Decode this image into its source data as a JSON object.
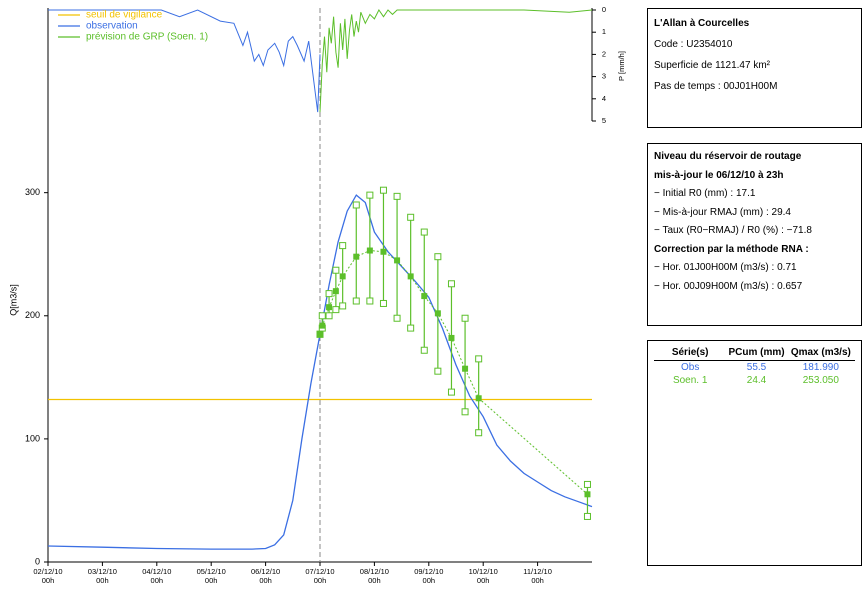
{
  "chart_data": [
    {
      "type": "line",
      "xlim": [
        0,
        240
      ],
      "xticks": [
        {
          "value": 0,
          "label": "02/12/10 00h"
        },
        {
          "value": 24,
          "label": "03/12/10 00h"
        },
        {
          "value": 48,
          "label": "04/12/10 00h"
        },
        {
          "value": 72,
          "label": "05/12/10 00h"
        },
        {
          "value": 96,
          "label": "06/12/10 00h"
        },
        {
          "value": 120,
          "label": "07/12/10 00h"
        },
        {
          "value": 144,
          "label": "08/12/10 00h"
        },
        {
          "value": 168,
          "label": "09/12/10 00h"
        },
        {
          "value": 192,
          "label": "10/12/10 00h"
        },
        {
          "value": 216,
          "label": "11/12/10 00h"
        }
      ],
      "ylim": [
        0,
        450
      ],
      "yticks": [
        0,
        100,
        200,
        300
      ],
      "ylabel": "Q[m3/s]",
      "threshold": {
        "name": "seuil de vigilance",
        "value": 132,
        "color": "#f2c200"
      },
      "forecast_time": 120,
      "series": [
        {
          "name": "observation",
          "color": "#3b6fe3",
          "x": [
            0,
            24,
            48,
            72,
            90,
            96,
            100,
            104,
            108,
            112,
            116,
            120,
            124,
            128,
            132,
            136,
            140,
            144,
            150,
            156,
            162,
            168,
            174,
            180,
            186,
            192,
            198,
            204,
            210,
            216,
            222,
            228,
            234,
            240
          ],
          "values": [
            13,
            12,
            11,
            10.5,
            10.5,
            11,
            14,
            22,
            50,
            100,
            145,
            185,
            225,
            260,
            285,
            298,
            292,
            268,
            252,
            240,
            228,
            215,
            190,
            160,
            135,
            118,
            95,
            82,
            72,
            65,
            58,
            53,
            49,
            45
          ]
        },
        {
          "name": "prévision de GRP (Soen. 1)",
          "color": "#5cbf2a",
          "x": [
            120,
            121,
            124,
            127,
            130,
            136,
            142,
            148,
            154,
            160,
            166,
            172,
            178,
            184,
            190,
            238
          ],
          "values": [
            185,
            192,
            207,
            220,
            232,
            248,
            253,
            252,
            245,
            232,
            216,
            202,
            182,
            157,
            133,
            55
          ],
          "low": [
            185,
            190,
            200,
            205,
            208,
            212,
            212,
            210,
            198,
            190,
            172,
            155,
            138,
            122,
            105,
            37
          ],
          "high": [
            185,
            200,
            218,
            237,
            257,
            290,
            298,
            302,
            297,
            280,
            268,
            248,
            226,
            198,
            165,
            63
          ]
        }
      ]
    },
    {
      "type": "rain",
      "ylim": [
        0,
        5
      ],
      "yticks": [
        0,
        1,
        2,
        3,
        4,
        5
      ],
      "ylabel": "P [mm/h]",
      "series": [
        {
          "color": "#3b6fe3",
          "x": [
            0,
            50,
            58,
            66,
            76,
            82,
            86,
            88,
            91,
            93,
            95,
            97,
            100,
            102,
            104,
            106,
            108,
            110,
            113,
            115,
            117,
            119,
            120
          ],
          "values": [
            0,
            0,
            0.3,
            0,
            0.5,
            0.6,
            1.6,
            1,
            2.3,
            2,
            2.5,
            1.8,
            1.5,
            1.9,
            2.5,
            1.4,
            1.2,
            1.6,
            2.3,
            1.4,
            3,
            4.6,
            2
          ]
        },
        {
          "color": "#5cbf2a",
          "x": [
            120,
            121,
            122,
            123,
            124,
            125,
            126,
            127,
            128,
            129,
            130,
            131,
            132,
            133,
            134,
            135,
            136,
            137,
            138,
            140,
            142,
            144,
            146,
            148,
            150,
            152,
            154,
            156,
            160,
            170,
            180,
            190,
            200,
            210,
            230,
            240
          ],
          "values": [
            4.6,
            2.4,
            1.2,
            2.8,
            0.8,
            1.5,
            0.3,
            1.9,
            2.6,
            0.6,
            1.8,
            0.4,
            2.2,
            0.9,
            0.2,
            1.2,
            0.5,
            1,
            0.1,
            0.6,
            0.2,
            0.4,
            0,
            0.3,
            0,
            0.2,
            0,
            0,
            0,
            0,
            0,
            0,
            0,
            0,
            0.1,
            0
          ]
        }
      ]
    }
  ],
  "station": {
    "title": "L'Allan à Courcelles",
    "lines": [
      "Code : U2354010",
      "Superficie de 1121.47 km²",
      "Pas de temps : 00J01H00M"
    ]
  },
  "reservoir": {
    "title": "Niveau du réservoir de routage",
    "subtitle": "mis-à-jour le 06/12/10 à 23h",
    "lines": [
      {
        "label": "− Initial R0 (mm) :",
        "value": "17.1"
      },
      {
        "label": "− Mis-à-jour RMAJ (mm) :",
        "value": "29.4"
      },
      {
        "label": "− Taux (R0−RMAJ) / R0 (%) :",
        "value": "−71.8"
      }
    ],
    "correction": "Correction par la méthode RNA :",
    "corrections": [
      {
        "label": "− Hor. 01J00H00M (m3/s) :",
        "value": "0.71"
      },
      {
        "label": "− Hor. 00J09H00M (m3/s) :",
        "value": "0.657"
      }
    ]
  },
  "table": {
    "headers": [
      "Série(s)",
      "PCum (mm)",
      "Qmax (m3/s)"
    ],
    "rows": [
      {
        "cells": [
          "Obs",
          "55.5",
          "181.990"
        ],
        "color": "#3b6fe3"
      },
      {
        "cells": [
          "Soen. 1",
          "24.4",
          "253.050"
        ],
        "color": "#5cbf2a"
      }
    ]
  }
}
